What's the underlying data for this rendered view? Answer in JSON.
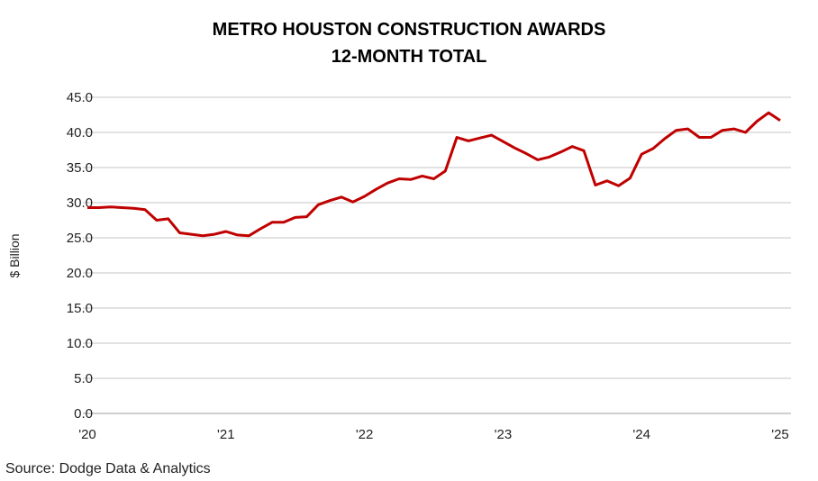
{
  "chart_data": {
    "type": "line",
    "title": "METRO HOUSTON CONSTRUCTION AWARDS",
    "subtitle": "12-MONTH TOTAL",
    "xlabel": "",
    "ylabel": "$ Billion",
    "ylim": [
      0,
      45
    ],
    "yticks": [
      "0.0",
      "5.0",
      "10.0",
      "15.0",
      "20.0",
      "25.0",
      "30.0",
      "35.0",
      "40.0",
      "45.0"
    ],
    "xticks": [
      "'20",
      "'21",
      "'22",
      "'23",
      "'24",
      "'25"
    ],
    "grid": true,
    "x_start": "2020-01",
    "x_frequency": "monthly",
    "series": [
      {
        "color": "#c00000",
        "values": [
          29.3,
          29.3,
          29.4,
          29.3,
          29.2,
          29.0,
          27.5,
          27.7,
          25.7,
          25.5,
          25.3,
          25.5,
          25.9,
          25.4,
          25.3,
          26.3,
          27.2,
          27.2,
          27.9,
          28.0,
          29.7,
          30.3,
          30.8,
          30.1,
          30.9,
          31.9,
          32.8,
          33.4,
          33.3,
          33.8,
          33.4,
          34.5,
          39.3,
          38.8,
          39.2,
          39.6,
          38.7,
          37.8,
          37.0,
          36.1,
          36.5,
          37.2,
          38.0,
          37.4,
          32.5,
          33.1,
          32.4,
          33.5,
          36.9,
          37.7,
          39.1,
          40.3,
          40.5,
          39.3,
          39.3,
          40.3,
          40.5,
          40.0,
          41.6,
          42.8,
          41.7
        ]
      }
    ],
    "source": "Source: Dodge Data & Analytics"
  }
}
